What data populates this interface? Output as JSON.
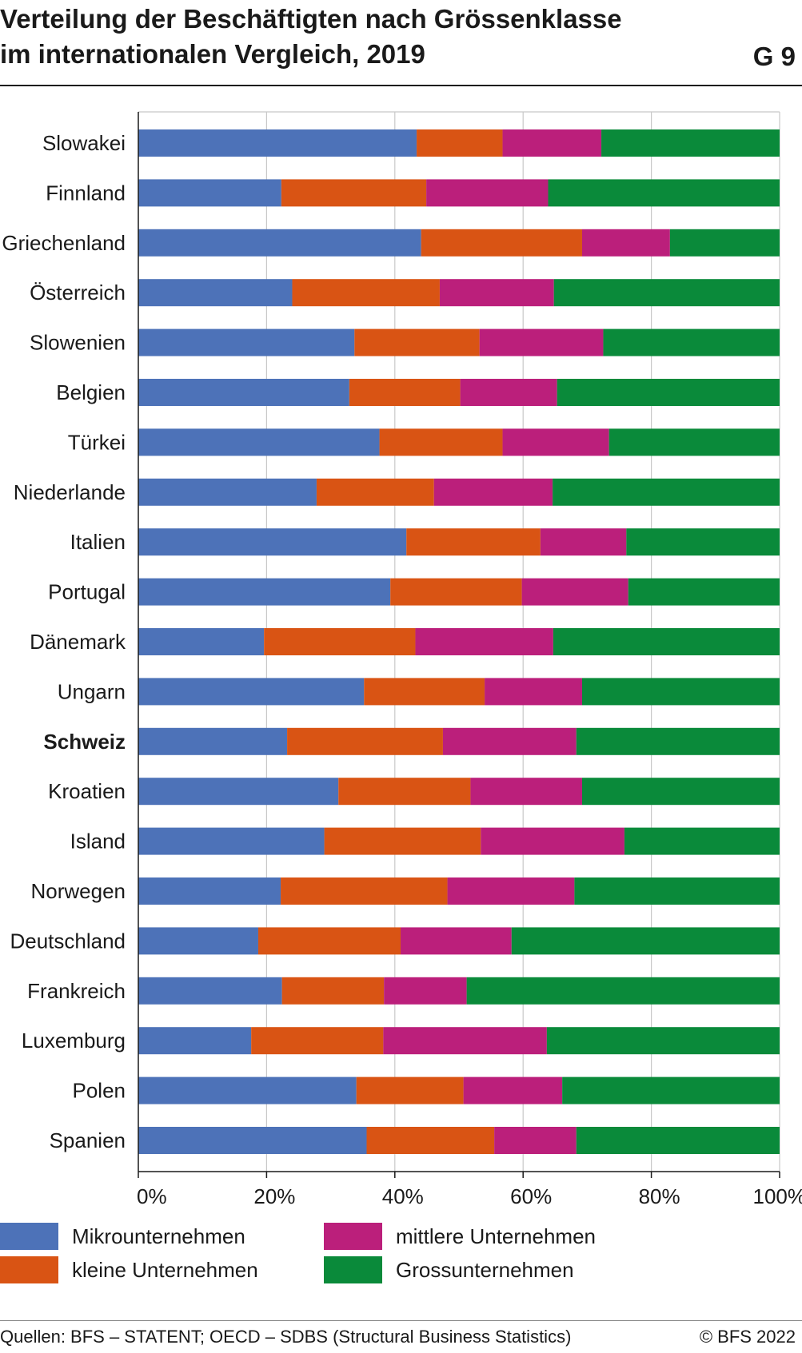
{
  "header": {
    "title_line1": "Verteilung der Beschäftigten nach Grössenklasse",
    "title_line2": "im internationalen Vergleich, 2019",
    "graph_number": "G 9"
  },
  "footer": {
    "source": "Quellen:  BFS – STATENT; OECD – SDBS (Structural Business Statistics)",
    "copyright": "© BFS 2022"
  },
  "colors": {
    "micro": "#4d72b8",
    "small": "#d95414",
    "medium": "#bb1f7b",
    "large": "#0a8a3a",
    "axis": "#1a1a1a",
    "grid": "#c8c8c8"
  },
  "chart_data": {
    "type": "bar",
    "orientation": "horizontal",
    "stacked": true,
    "normalized": true,
    "categories": [
      "Slowakei",
      "Finnland",
      "Griechenland",
      "Österreich",
      "Slowenien",
      "Belgien",
      "Türkei",
      "Niederlande",
      "Italien",
      "Portugal",
      "Dänemark",
      "Ungarn",
      "Schweiz",
      "Kroatien",
      "Island",
      "Norwegen",
      "Deutschland",
      "Frankreich",
      "Luxemburg",
      "Polen",
      "Spanien"
    ],
    "highlight": "Schweiz",
    "series": [
      {
        "name": "Mikrounternehmen",
        "color": "#4d72b8",
        "values": [
          43.4,
          22.3,
          44.1,
          24.0,
          33.7,
          32.9,
          37.6,
          27.8,
          41.8,
          39.3,
          19.6,
          35.2,
          23.2,
          31.2,
          29.0,
          22.2,
          18.7,
          22.4,
          17.6,
          34.0,
          35.6
        ]
      },
      {
        "name": "kleine Unternehmen",
        "color": "#d95414",
        "values": [
          13.4,
          22.6,
          25.1,
          23.0,
          19.5,
          17.3,
          19.2,
          18.3,
          20.9,
          20.5,
          23.6,
          18.8,
          24.3,
          20.6,
          24.4,
          26.0,
          22.2,
          15.9,
          20.6,
          16.7,
          19.9
        ]
      },
      {
        "name": "mittlere Unternehmen",
        "color": "#bb1f7b",
        "values": [
          15.4,
          19.0,
          13.7,
          17.8,
          19.3,
          15.1,
          16.6,
          18.5,
          13.4,
          16.6,
          21.5,
          15.2,
          20.8,
          17.4,
          22.4,
          19.8,
          17.3,
          12.9,
          25.5,
          15.4,
          12.8
        ]
      },
      {
        "name": "Grossunternehmen",
        "color": "#0a8a3a",
        "values": [
          27.8,
          36.1,
          17.1,
          35.2,
          27.5,
          34.7,
          26.6,
          35.4,
          23.9,
          23.6,
          35.3,
          30.8,
          31.7,
          30.8,
          24.2,
          32.0,
          41.8,
          48.8,
          36.3,
          33.9,
          31.7
        ]
      }
    ],
    "xlim": [
      0,
      100
    ],
    "xticks": [
      "0%",
      "20%",
      "40%",
      "60%",
      "80%",
      "100%"
    ],
    "grid": true,
    "legend_position": "bottom"
  }
}
